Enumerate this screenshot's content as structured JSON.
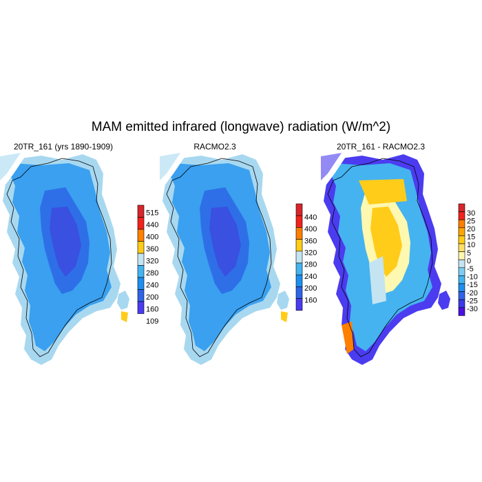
{
  "title": "MAM emitted infrared (longwave) radiation (W/m^2)",
  "panels": [
    {
      "title": "20TR_161 (yrs 1890-1909)",
      "colorbar": {
        "labels": [
          "515",
          "440",
          "400",
          "360",
          "320",
          "280",
          "240",
          "200",
          "160",
          "109"
        ],
        "colors": [
          "#d7262b",
          "#f1231c",
          "#ff7f00",
          "#ffcc1a",
          "#c4e4f2",
          "#45b3f0",
          "#1e8ff0",
          "#2f64e6",
          "#4b3cf0"
        ]
      },
      "zones": {
        "outer": "#a8d8f0",
        "mid": "#3aa0ef",
        "inner": "#2e6fe8",
        "core": "#3a50e0"
      }
    },
    {
      "title": "RACMO2.3",
      "colorbar": {
        "labels": [
          "440",
          "400",
          "360",
          "320",
          "280",
          "240",
          "200",
          "160"
        ],
        "colors": [
          "#d7262b",
          "#f1231c",
          "#ff7f00",
          "#ffcc1a",
          "#c4e4f2",
          "#45b3f0",
          "#1e8ff0",
          "#2f64e6",
          "#4b3cf0"
        ]
      },
      "zones": {
        "outer": "#a8d8f0",
        "mid": "#3aa0ef",
        "inner": "#2e6fe8",
        "core": "#3a50e0"
      }
    },
    {
      "title": "20TR_161 - RACMO2.3",
      "colorbar": {
        "labels": [
          "30",
          "25",
          "20",
          "15",
          "10",
          "5",
          "0",
          "-5",
          "-10",
          "-15",
          "-20",
          "-25",
          "-30"
        ],
        "colors": [
          "#d7262b",
          "#f1231c",
          "#ff7f00",
          "#ffa500",
          "#ffcc1a",
          "#ffe066",
          "#fff8b0",
          "#c4e4f2",
          "#7ecdf2",
          "#45b3f0",
          "#1e8ff0",
          "#2f64e6",
          "#3a3ae8",
          "#4b10e0"
        ]
      },
      "zones": {
        "outer": "#4b3cf0",
        "mid": "#45b3f0",
        "inner": "#fff8b0",
        "core": "#ffcc1a"
      }
    }
  ]
}
